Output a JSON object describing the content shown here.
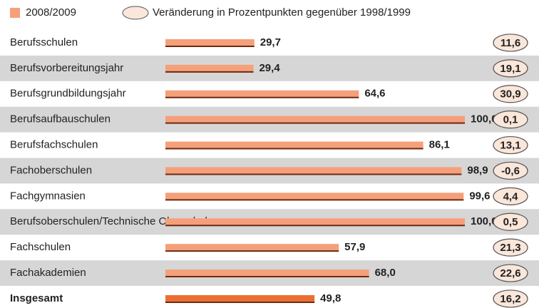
{
  "chart_data": {
    "type": "bar",
    "categories": [
      "Berufsschulen",
      "Berufsvorbereitungsjahr",
      "Berufsgrundbildungsjahr",
      "Berufsaufbauschulen",
      "Berufsfachschulen",
      "Fachoberschulen",
      "Fachgymnasien",
      "Berufsoberschulen/Technische Oberschulen",
      "Fachschulen",
      "Fachakademien",
      "Insgesamt"
    ],
    "series": [
      {
        "name": "2008/2009",
        "color": "#f5a07a",
        "highlight_color": "#ea6f33",
        "values": [
          29.7,
          29.4,
          64.6,
          100.0,
          86.1,
          98.9,
          99.6,
          100.0,
          57.9,
          68.0,
          49.8
        ],
        "value_labels": [
          "29,7",
          "29,4",
          "64,6",
          "100,0",
          "86,1",
          "98,9",
          "99,6",
          "100,0",
          "57,9",
          "68,0",
          "49,8"
        ]
      },
      {
        "name": "Veränderung in Prozentpunkten gegenüber 1998/1999",
        "color": "#fbe6da",
        "values": [
          11.6,
          19.1,
          30.9,
          0.1,
          13.1,
          -0.6,
          4.4,
          0.5,
          21.3,
          22.6,
          16.2
        ],
        "value_labels": [
          "11,6",
          "19,1",
          "30,9",
          "0,1",
          "13,1",
          "-0,6",
          "4,4",
          "0,5",
          "21,3",
          "22,6",
          "16,2"
        ]
      }
    ],
    "xlim": [
      0,
      100
    ]
  }
}
